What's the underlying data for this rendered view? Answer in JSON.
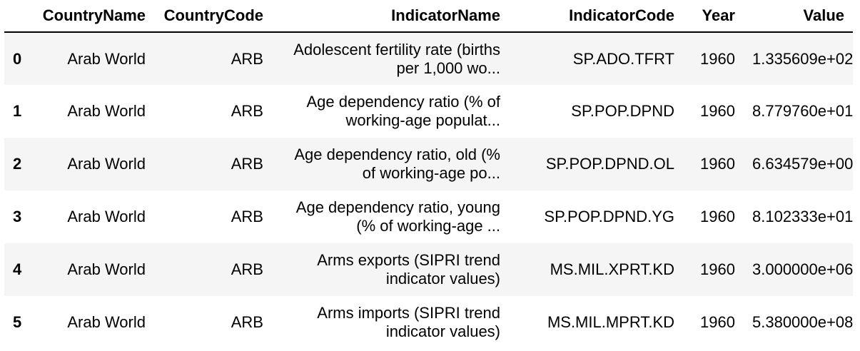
{
  "table": {
    "index_header": "",
    "columns": [
      "CountryName",
      "CountryCode",
      "IndicatorName",
      "IndicatorCode",
      "Year",
      "Value"
    ],
    "rows": [
      {
        "index": "0",
        "CountryName": "Arab World",
        "CountryCode": "ARB",
        "IndicatorName": "Adolescent fertility rate (births per 1,000 wo...",
        "IndicatorCode": "SP.ADO.TFRT",
        "Year": "1960",
        "Value": "1.335609e+02"
      },
      {
        "index": "1",
        "CountryName": "Arab World",
        "CountryCode": "ARB",
        "IndicatorName": "Age dependency ratio (% of working-age populat...",
        "IndicatorCode": "SP.POP.DPND",
        "Year": "1960",
        "Value": "8.779760e+01"
      },
      {
        "index": "2",
        "CountryName": "Arab World",
        "CountryCode": "ARB",
        "IndicatorName": "Age dependency ratio, old (% of working-age po...",
        "IndicatorCode": "SP.POP.DPND.OL",
        "Year": "1960",
        "Value": "6.634579e+00"
      },
      {
        "index": "3",
        "CountryName": "Arab World",
        "CountryCode": "ARB",
        "IndicatorName": "Age dependency ratio, young (% of working-age ...",
        "IndicatorCode": "SP.POP.DPND.YG",
        "Year": "1960",
        "Value": "8.102333e+01"
      },
      {
        "index": "4",
        "CountryName": "Arab World",
        "CountryCode": "ARB",
        "IndicatorName": "Arms exports (SIPRI trend indicator values)",
        "IndicatorCode": "MS.MIL.XPRT.KD",
        "Year": "1960",
        "Value": "3.000000e+06"
      },
      {
        "index": "5",
        "CountryName": "Arab World",
        "CountryCode": "ARB",
        "IndicatorName": "Arms imports (SIPRI trend indicator values)",
        "IndicatorCode": "MS.MIL.MPRT.KD",
        "Year": "1960",
        "Value": "5.380000e+08"
      }
    ]
  },
  "colors": {
    "striped_row": "#f5f5f5",
    "plain_row": "#ffffff",
    "header_rule": "#000000",
    "text": "#000000"
  }
}
